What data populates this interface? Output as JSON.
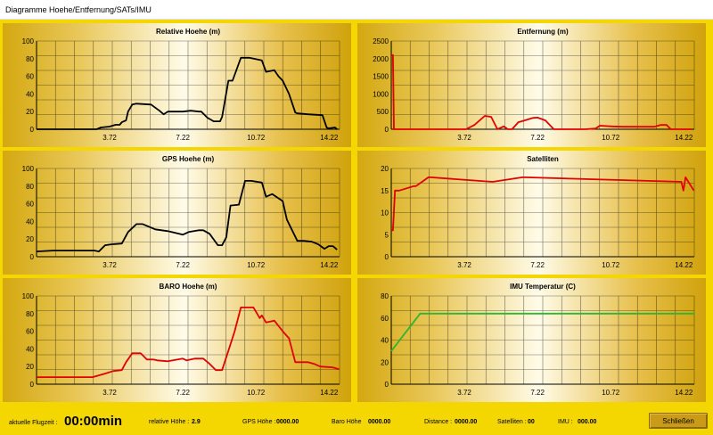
{
  "window": {
    "title": "Diagramme  Hoehe/Entfernung/SATs/IMU"
  },
  "colors": {
    "background": "#f4d700",
    "line_black": "#000000",
    "line_red": "#e00000",
    "line_green": "#2fb52f"
  },
  "x_ticks": [
    "3.72",
    "7.22",
    "10.72",
    "14.22"
  ],
  "charts": {
    "relative_hoehe": {
      "title": "Relative Hoehe (m)",
      "y_ticks": [
        "0",
        "20",
        "40",
        "60",
        "80",
        "100"
      ],
      "chart_data": {
        "type": "line",
        "title": "Relative Hoehe (m)",
        "ylim": [
          0,
          100
        ],
        "xlim": [
          0.22,
          14.72
        ],
        "color": "black",
        "x": [
          0.22,
          3.1,
          3.3,
          3.72,
          4.0,
          4.2,
          4.3,
          4.5,
          4.6,
          4.8,
          5.0,
          5.7,
          6.1,
          6.3,
          6.5,
          7.22,
          7.6,
          8.0,
          8.1,
          8.4,
          8.7,
          9.0,
          9.1,
          9.4,
          9.6,
          10.0,
          10.4,
          11.0,
          11.2,
          11.6,
          11.8,
          12.0,
          12.3,
          12.6,
          12.7,
          13.2,
          13.9,
          14.1,
          14.2,
          14.5,
          14.6
        ],
        "y": [
          0,
          0,
          2,
          3,
          5,
          5,
          8,
          10,
          20,
          28,
          29,
          28,
          21,
          17,
          20,
          20,
          21,
          20,
          20,
          13,
          9,
          9,
          14,
          55,
          55,
          81,
          81,
          78,
          65,
          67,
          60,
          55,
          40,
          19,
          18,
          17,
          16,
          2,
          1,
          2,
          0
        ]
      }
    },
    "entfernung": {
      "title": "Entfernung (m)",
      "y_ticks": [
        "0",
        "500",
        "1000",
        "1500",
        "2000",
        "2500"
      ],
      "chart_data": {
        "type": "line",
        "title": "Entfernung (m)",
        "ylim": [
          0,
          2500
        ],
        "xlim": [
          0.22,
          14.72
        ],
        "color": "red",
        "x": [
          0.22,
          0.3,
          0.35,
          3.8,
          4.2,
          4.7,
          5.0,
          5.3,
          5.6,
          5.8,
          6.0,
          6.3,
          6.6,
          7.0,
          7.22,
          7.6,
          8.0,
          8.4,
          9.0,
          9.5,
          10.0,
          10.2,
          10.8,
          11.3,
          12.0,
          12.8,
          13.1,
          13.4,
          13.6,
          14.0,
          14.6
        ],
        "y": [
          2100,
          2100,
          0,
          0,
          120,
          380,
          350,
          0,
          80,
          0,
          0,
          200,
          250,
          320,
          330,
          250,
          0,
          0,
          0,
          0,
          20,
          100,
          80,
          70,
          70,
          70,
          120,
          120,
          0,
          0,
          0
        ]
      }
    },
    "gps_hoehe": {
      "title": "GPS Hoehe (m)",
      "y_ticks": [
        "0",
        "20",
        "40",
        "60",
        "80",
        "100"
      ],
      "chart_data": {
        "type": "line",
        "title": "GPS Hoehe (m)",
        "ylim": [
          0,
          100
        ],
        "xlim": [
          0.22,
          14.72
        ],
        "color": "black",
        "x": [
          0.22,
          1.0,
          2.0,
          3.0,
          3.2,
          3.5,
          3.8,
          4.3,
          4.6,
          5.0,
          5.3,
          5.9,
          6.5,
          7.22,
          7.5,
          8.0,
          8.2,
          8.5,
          8.9,
          9.1,
          9.3,
          9.5,
          9.9,
          10.2,
          10.5,
          11.0,
          11.2,
          11.5,
          12.0,
          12.2,
          12.7,
          13.0,
          13.4,
          13.7,
          14.0,
          14.2,
          14.4,
          14.6
        ],
        "y": [
          6,
          7,
          7,
          7,
          6,
          13,
          14,
          15,
          28,
          37,
          37,
          31,
          29,
          25,
          28,
          30,
          30,
          26,
          13,
          13,
          22,
          58,
          59,
          86,
          86,
          84,
          68,
          71,
          63,
          42,
          18,
          18,
          17,
          14,
          9,
          12,
          12,
          8
        ]
      }
    },
    "satelliten": {
      "title": "Satelliten",
      "y_ticks": [
        "0",
        "5",
        "10",
        "15",
        "20"
      ],
      "chart_data": {
        "type": "line",
        "title": "Satelliten",
        "ylim": [
          0,
          20
        ],
        "xlim": [
          0.22,
          14.72
        ],
        "color": "red",
        "x": [
          0.22,
          0.3,
          0.4,
          0.6,
          1.3,
          1.4,
          2.0,
          2.1,
          5.0,
          5.1,
          6.5,
          6.6,
          14.0,
          14.1,
          14.2,
          14.3,
          14.7
        ],
        "y": [
          6,
          6,
          15,
          15,
          16,
          16,
          18,
          18,
          17,
          17,
          18,
          18,
          17,
          17,
          15,
          18,
          15
        ]
      }
    },
    "baro_hoehe": {
      "title": "BARO Hoehe (m)",
      "y_ticks": [
        "0",
        "20",
        "40",
        "60",
        "80",
        "100"
      ],
      "chart_data": {
        "type": "line",
        "title": "BARO Hoehe (m)",
        "ylim": [
          0,
          100
        ],
        "xlim": [
          0.22,
          14.72
        ],
        "color": "red",
        "x": [
          0.22,
          2.9,
          3.2,
          3.5,
          3.9,
          4.3,
          4.5,
          4.8,
          5.2,
          5.5,
          5.8,
          6.0,
          6.5,
          7.22,
          7.4,
          7.8,
          8.2,
          8.5,
          8.8,
          9.1,
          9.4,
          9.7,
          10.0,
          10.6,
          10.9,
          11.0,
          11.2,
          11.6,
          12.0,
          12.3,
          12.6,
          13.2,
          13.5,
          13.8,
          14.4,
          14.7
        ],
        "y": [
          8,
          8,
          10,
          12,
          15,
          16,
          25,
          35,
          35,
          28,
          28,
          27,
          26,
          29,
          27,
          29,
          29,
          23,
          16,
          16,
          38,
          60,
          87,
          87,
          75,
          78,
          70,
          72,
          60,
          52,
          25,
          25,
          23,
          20,
          19,
          17
        ]
      }
    },
    "imu_temperatur": {
      "title": "IMU Temperatur (C)",
      "y_ticks": [
        "0",
        "20",
        "40",
        "60",
        "80"
      ],
      "chart_data": {
        "type": "line",
        "title": "IMU Temperatur (C)",
        "ylim": [
          0,
          80
        ],
        "xlim": [
          0.22,
          14.72
        ],
        "color": "green",
        "x": [
          0.22,
          1.6,
          14.72
        ],
        "y": [
          30,
          64,
          64
        ]
      }
    }
  },
  "status": {
    "flugzeit_label": "aktuelle Flugzeit :",
    "flugzeit_value": "00:00min",
    "rel_hoehe_label": "relative Höhe :",
    "rel_hoehe_value": "2.9",
    "gps_hoehe_label": "GPS Höhe :",
    "gps_hoehe_value": "0000.00",
    "baro_hoehe_label": "Baro Höhe",
    "baro_hoehe_value": "0000.00",
    "distance_label": "Distance :",
    "distance_value": "0000.00",
    "satelliten_label": "Satelliten :",
    "satelliten_value": "00",
    "imu_label": "IMU :",
    "imu_value": "000.00",
    "close_button": "Schließen"
  }
}
